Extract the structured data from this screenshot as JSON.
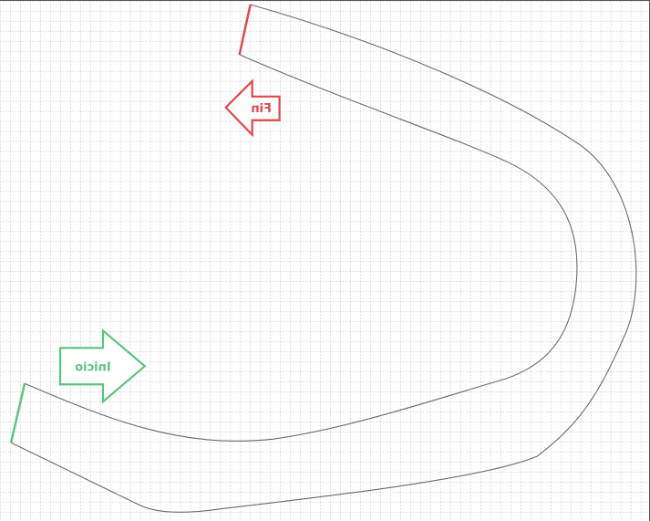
{
  "track": {
    "start_label": "Inicio",
    "finish_label": "Fin"
  },
  "colors": {
    "start": "#5cc47c",
    "finish": "#e0484c",
    "grid": "#9a9a9a",
    "track_border": "#6a6a6a",
    "background": "#ffffff"
  }
}
